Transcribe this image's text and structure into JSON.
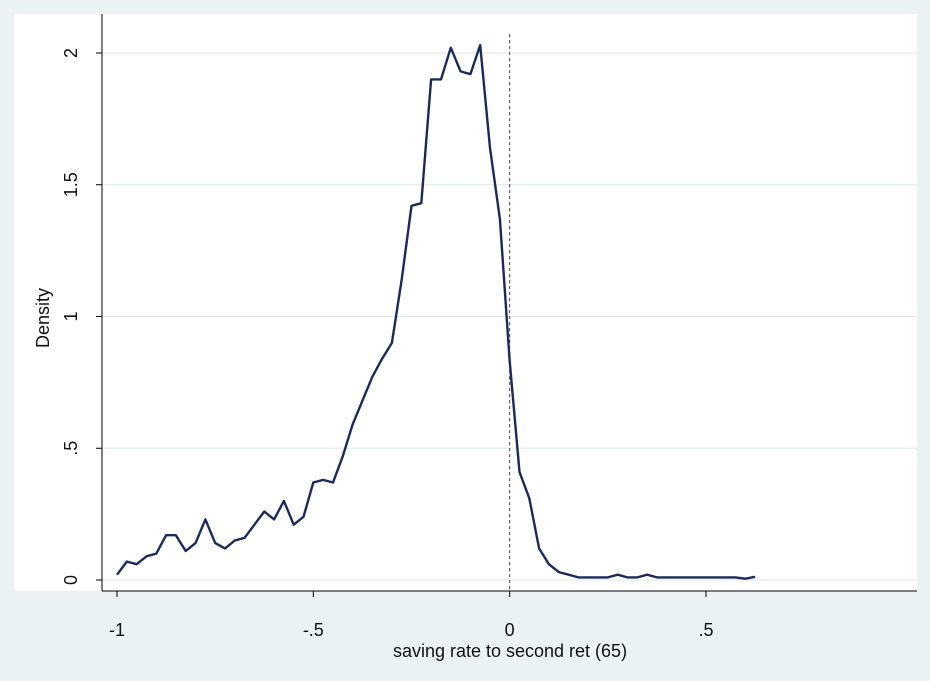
{
  "chart_data": {
    "type": "line",
    "title": "",
    "xlabel": "saving rate to second ret (65)",
    "ylabel": "Density",
    "xlim": [
      -1.05,
      1.04
    ],
    "ylim": [
      -0.05,
      2.06
    ],
    "x_ticks": [
      {
        "value": -1,
        "label": "-1"
      },
      {
        "value": -0.5,
        "label": "-.5"
      },
      {
        "value": 0,
        "label": "0"
      },
      {
        "value": 0.5,
        "label": ".5"
      }
    ],
    "y_ticks": [
      {
        "value": 0,
        "label": "0"
      },
      {
        "value": 0.5,
        "label": ".5"
      },
      {
        "value": 1,
        "label": "1"
      },
      {
        "value": 1.5,
        "label": "1.5"
      },
      {
        "value": 2,
        "label": "2"
      }
    ],
    "grid": "horizontal",
    "reference_line": {
      "axis": "x",
      "value": 0,
      "style": "dashed"
    },
    "colors": {
      "background": "#eaf2f3",
      "plot_area": "#ffffff",
      "line": "#1a2a5e",
      "grid": "#e3ebec",
      "axis": "#000000",
      "text": "#111111"
    },
    "series": [
      {
        "x": [
          -1.0,
          -0.975,
          -0.95,
          -0.925,
          -0.9,
          -0.875,
          -0.85,
          -0.825,
          -0.8,
          -0.775,
          -0.75,
          -0.725,
          -0.7,
          -0.675,
          -0.65,
          -0.625,
          -0.6,
          -0.575,
          -0.55,
          -0.525,
          -0.5,
          -0.475,
          -0.45,
          -0.425,
          -0.4,
          -0.375,
          -0.35,
          -0.325,
          -0.3,
          -0.275,
          -0.25,
          -0.225,
          -0.2,
          -0.175,
          -0.15,
          -0.125,
          -0.1,
          -0.075,
          -0.05,
          -0.025,
          0.0,
          0.025,
          0.05,
          0.075,
          0.1,
          0.125,
          0.15,
          0.175,
          0.2,
          0.225,
          0.25,
          0.275,
          0.3,
          0.325,
          0.35,
          0.375,
          0.4,
          0.425,
          0.45,
          0.475,
          0.5,
          0.525,
          0.55,
          0.575,
          0.6,
          0.625
        ],
        "y": [
          0.02,
          0.07,
          0.06,
          0.09,
          0.1,
          0.17,
          0.17,
          0.11,
          0.14,
          0.23,
          0.14,
          0.12,
          0.15,
          0.16,
          0.21,
          0.26,
          0.23,
          0.3,
          0.21,
          0.24,
          0.37,
          0.38,
          0.37,
          0.47,
          0.59,
          0.68,
          0.77,
          0.84,
          0.9,
          1.14,
          1.42,
          1.43,
          1.9,
          1.9,
          2.02,
          1.93,
          1.92,
          2.03,
          1.64,
          1.37,
          0.83,
          0.41,
          0.31,
          0.12,
          0.06,
          0.03,
          0.02,
          0.01,
          0.01,
          0.01,
          0.01,
          0.02,
          0.01,
          0.01,
          0.02,
          0.01,
          0.01,
          0.01,
          0.01,
          0.01,
          0.01,
          0.01,
          0.01,
          0.01,
          0.005,
          0.012
        ]
      }
    ]
  }
}
